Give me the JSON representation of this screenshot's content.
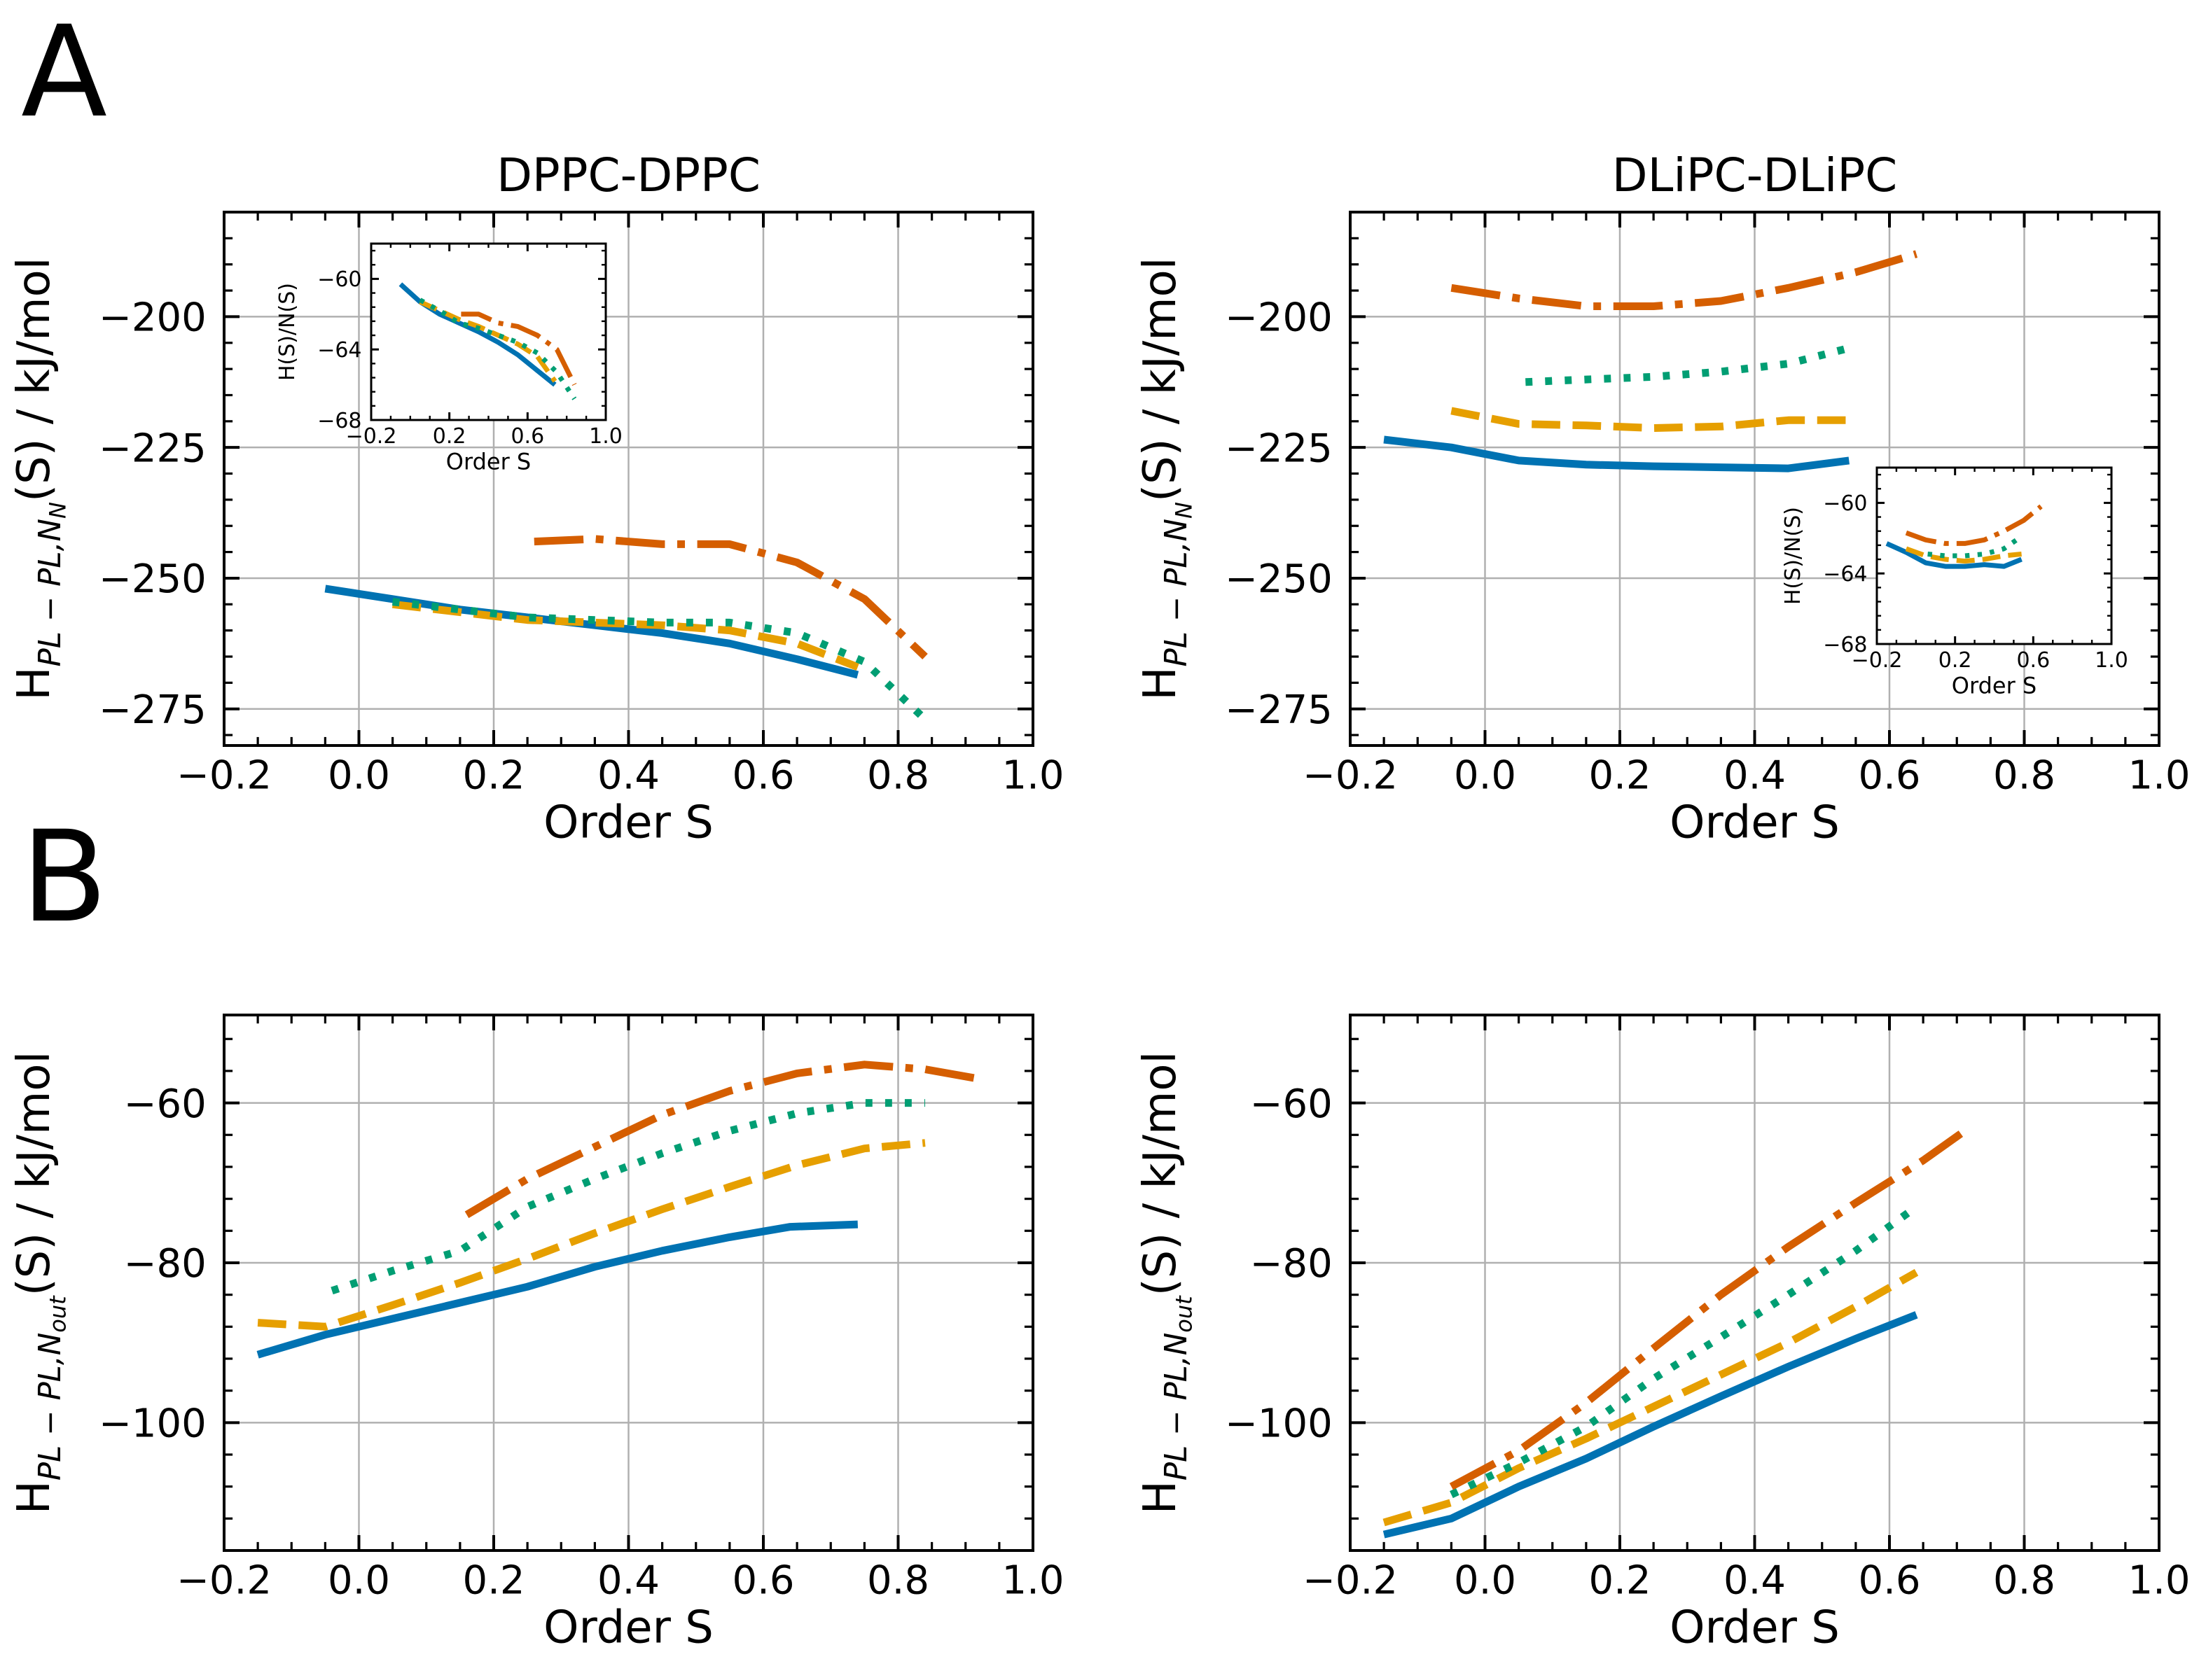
{
  "figure": {
    "panel_labels": [
      "A",
      "B"
    ]
  },
  "style": {
    "series_colors": [
      "#0072b2",
      "#e69f00",
      "#009e73",
      "#d55e00"
    ],
    "series_dash": [
      "solid",
      "dashed",
      "dotted",
      "dashdot"
    ],
    "grid_color": "#b0b0b0"
  },
  "chart_data": [
    {
      "id": "A-left",
      "type": "line",
      "title": "DPPC-DPPC",
      "xlabel": "Order S",
      "ylabel": "H_{PL-PL,N_N}(S) / kJ/mol",
      "xlim": [
        -0.2,
        1.0
      ],
      "ylim": [
        -282,
        -180
      ],
      "xticks": [
        -0.2,
        0.0,
        0.2,
        0.4,
        0.6,
        0.8,
        1.0
      ],
      "xtick_labels": [
        "−0.2",
        "0.0",
        "0.2",
        "0.4",
        "0.6",
        "0.8",
        "1.0"
      ],
      "yticks": [
        -275,
        -250,
        -225,
        -200
      ],
      "ytick_labels": [
        "−275",
        "−250",
        "−225",
        "−200"
      ],
      "grid": true,
      "series": [
        {
          "x": [
            -0.05,
            0.05,
            0.15,
            0.25,
            0.35,
            0.45,
            0.55,
            0.65,
            0.74
          ],
          "y": [
            -252,
            -254,
            -256,
            -257.5,
            -259,
            -260.5,
            -262.5,
            -265.5,
            -268.5
          ]
        },
        {
          "x": [
            0.05,
            0.15,
            0.25,
            0.35,
            0.45,
            0.55,
            0.65,
            0.74
          ],
          "y": [
            -255,
            -256.5,
            -258,
            -258.5,
            -259,
            -260,
            -262.5,
            -267
          ]
        },
        {
          "x": [
            0.05,
            0.15,
            0.25,
            0.35,
            0.45,
            0.55,
            0.65,
            0.75,
            0.84
          ],
          "y": [
            -254.5,
            -256,
            -257.5,
            -258,
            -258.5,
            -258.5,
            -260.5,
            -266,
            -277
          ]
        },
        {
          "x": [
            0.26,
            0.35,
            0.45,
            0.55,
            0.65,
            0.75,
            0.84
          ],
          "y": [
            -243,
            -242.5,
            -243.5,
            -243.5,
            -247,
            -254,
            -265
          ]
        }
      ],
      "inset": {
        "xlabel": "Order S",
        "ylabel": "H(S)/N(S)",
        "xlim": [
          -0.2,
          1.0
        ],
        "ylim": [
          -68,
          -58
        ],
        "xticks": [
          -0.2,
          0.2,
          0.6,
          1.0
        ],
        "xtick_labels": [
          "−0.2",
          "0.2",
          "0.6",
          "1.0"
        ],
        "yticks": [
          -68,
          -64,
          -60
        ],
        "ytick_labels": [
          "−68",
          "−64",
          "−60"
        ],
        "series": [
          {
            "x": [
              -0.05,
              0.05,
              0.15,
              0.25,
              0.35,
              0.45,
              0.55,
              0.65,
              0.74
            ],
            "y": [
              -60.3,
              -61.3,
              -62.0,
              -62.5,
              -63.0,
              -63.6,
              -64.3,
              -65.2,
              -66.0
            ]
          },
          {
            "x": [
              0.05,
              0.15,
              0.25,
              0.35,
              0.45,
              0.55,
              0.65,
              0.74
            ],
            "y": [
              -61.3,
              -61.8,
              -62.3,
              -62.7,
              -63.2,
              -63.7,
              -64.4,
              -65.8
            ]
          },
          {
            "x": [
              0.05,
              0.15,
              0.25,
              0.35,
              0.45,
              0.55,
              0.65,
              0.75,
              0.84
            ],
            "y": [
              -61.2,
              -61.8,
              -62.5,
              -62.8,
              -63.2,
              -63.6,
              -64.2,
              -65.3,
              -66.8
            ]
          },
          {
            "x": [
              0.26,
              0.35,
              0.45,
              0.55,
              0.65,
              0.75,
              0.84
            ],
            "y": [
              -62.0,
              -62.0,
              -62.5,
              -62.7,
              -63.2,
              -64.0,
              -66.0
            ]
          }
        ]
      }
    },
    {
      "id": "A-right",
      "type": "line",
      "title": "DLiPC-DLiPC",
      "xlabel": "Order S",
      "ylabel": "H_{PL-PL,N_N}(S) / kJ/mol",
      "xlim": [
        -0.2,
        1.0
      ],
      "ylim": [
        -282,
        -180
      ],
      "xticks": [
        -0.2,
        0.0,
        0.2,
        0.4,
        0.6,
        0.8,
        1.0
      ],
      "xtick_labels": [
        "−0.2",
        "0.0",
        "0.2",
        "0.4",
        "0.6",
        "0.8",
        "1.0"
      ],
      "yticks": [
        -275,
        -250,
        -225,
        -200
      ],
      "ytick_labels": [
        "−275",
        "−250",
        "−225",
        "−200"
      ],
      "grid": true,
      "series": [
        {
          "x": [
            -0.15,
            -0.05,
            0.05,
            0.15,
            0.25,
            0.35,
            0.45,
            0.54
          ],
          "y": [
            -223.5,
            -225,
            -227.5,
            -228.3,
            -228.6,
            -228.8,
            -229,
            -227.5
          ]
        },
        {
          "x": [
            -0.05,
            0.05,
            0.15,
            0.25,
            0.35,
            0.45,
            0.54
          ],
          "y": [
            -218,
            -220.5,
            -220.8,
            -221.3,
            -221,
            -219.8,
            -219.8
          ]
        },
        {
          "x": [
            0.06,
            0.15,
            0.25,
            0.35,
            0.45,
            0.54
          ],
          "y": [
            -212.5,
            -212,
            -211.5,
            -210.5,
            -209,
            -206
          ]
        },
        {
          "x": [
            -0.05,
            0.05,
            0.15,
            0.25,
            0.35,
            0.45,
            0.55,
            0.64
          ],
          "y": [
            -194.5,
            -196.5,
            -198,
            -198,
            -197,
            -194.5,
            -191.5,
            -188
          ]
        }
      ],
      "inset": {
        "xlabel": "Order S",
        "ylabel": "H(S)/N(S)",
        "xlim": [
          -0.2,
          1.0
        ],
        "ylim": [
          -68,
          -58
        ],
        "xticks": [
          -0.2,
          0.2,
          0.6,
          1.0
        ],
        "xtick_labels": [
          "−0.2",
          "0.2",
          "0.6",
          "1.0"
        ],
        "yticks": [
          -68,
          -64,
          -60
        ],
        "ytick_labels": [
          "−68",
          "−64",
          "−60"
        ],
        "series": [
          {
            "x": [
              -0.15,
              -0.05,
              0.05,
              0.15,
              0.25,
              0.35,
              0.45,
              0.54
            ],
            "y": [
              -62.3,
              -62.8,
              -63.4,
              -63.6,
              -63.6,
              -63.5,
              -63.6,
              -63.2
            ]
          },
          {
            "x": [
              -0.05,
              0.05,
              0.15,
              0.25,
              0.35,
              0.45,
              0.54
            ],
            "y": [
              -62.6,
              -63.0,
              -63.2,
              -63.3,
              -63.2,
              -63.0,
              -62.9
            ]
          },
          {
            "x": [
              0.06,
              0.15,
              0.25,
              0.35,
              0.45,
              0.54
            ],
            "y": [
              -62.9,
              -63.0,
              -63.0,
              -62.9,
              -62.6,
              -61.9
            ]
          },
          {
            "x": [
              -0.05,
              0.05,
              0.15,
              0.25,
              0.35,
              0.45,
              0.55,
              0.64
            ],
            "y": [
              -61.7,
              -62.1,
              -62.3,
              -62.3,
              -62.1,
              -61.6,
              -61.0,
              -60.2
            ]
          }
        ]
      }
    },
    {
      "id": "B-left",
      "type": "line",
      "title": "",
      "xlabel": "Order S",
      "ylabel": "H_{PL-PL,N_out}(S) / kJ/mol",
      "xlim": [
        -0.2,
        1.0
      ],
      "ylim": [
        -116,
        -49
      ],
      "xticks": [
        -0.2,
        0.0,
        0.2,
        0.4,
        0.6,
        0.8,
        1.0
      ],
      "xtick_labels": [
        "−0.2",
        "0.0",
        "0.2",
        "0.4",
        "0.6",
        "0.8",
        "1.0"
      ],
      "yticks": [
        -100,
        -80,
        -60
      ],
      "ytick_labels": [
        "−100",
        "−80",
        "−60"
      ],
      "grid": true,
      "series": [
        {
          "x": [
            -0.15,
            -0.05,
            0.05,
            0.15,
            0.25,
            0.35,
            0.45,
            0.55,
            0.64,
            0.74
          ],
          "y": [
            -91.5,
            -89,
            -87,
            -85,
            -83,
            -80.5,
            -78.5,
            -76.8,
            -75.5,
            -75.2
          ]
        },
        {
          "x": [
            -0.15,
            -0.05,
            0.05,
            0.15,
            0.25,
            0.35,
            0.45,
            0.55,
            0.65,
            0.75,
            0.84
          ],
          "y": [
            -87.5,
            -88,
            -85.3,
            -82.5,
            -79.5,
            -76.3,
            -73.3,
            -70.5,
            -67.8,
            -65.7,
            -65
          ]
        },
        {
          "x": [
            -0.04,
            0.05,
            0.15,
            0.25,
            0.35,
            0.45,
            0.55,
            0.65,
            0.75,
            0.84
          ],
          "y": [
            -83.5,
            -81,
            -78.5,
            -73,
            -69.5,
            -66.3,
            -63.5,
            -61.3,
            -60,
            -60
          ]
        },
        {
          "x": [
            0.16,
            0.25,
            0.35,
            0.45,
            0.55,
            0.65,
            0.75,
            0.84,
            0.92
          ],
          "y": [
            -74,
            -69.5,
            -65.5,
            -61.5,
            -58.5,
            -56.3,
            -55.2,
            -55.8,
            -57
          ]
        }
      ]
    },
    {
      "id": "B-right",
      "type": "line",
      "title": "",
      "xlabel": "Order S",
      "ylabel": "H_{PL-PL,N_out}(S) / kJ/mol",
      "xlim": [
        -0.2,
        1.0
      ],
      "ylim": [
        -116,
        -49
      ],
      "xticks": [
        -0.2,
        0.0,
        0.2,
        0.4,
        0.6,
        0.8,
        1.0
      ],
      "xtick_labels": [
        "−0.2",
        "0.0",
        "0.2",
        "0.4",
        "0.6",
        "0.8",
        "1.0"
      ],
      "yticks": [
        -100,
        -80,
        -60
      ],
      "ytick_labels": [
        "−100",
        "−80",
        "−60"
      ],
      "grid": true,
      "series": [
        {
          "x": [
            -0.15,
            -0.05,
            0.05,
            0.15,
            0.25,
            0.35,
            0.45,
            0.55,
            0.64
          ],
          "y": [
            -114,
            -112,
            -108,
            -104.5,
            -100.5,
            -96.7,
            -93,
            -89.5,
            -86.5
          ]
        },
        {
          "x": [
            -0.15,
            -0.05,
            0.05,
            0.15,
            0.25,
            0.35,
            0.45,
            0.55,
            0.64
          ],
          "y": [
            -112.5,
            -110,
            -105.7,
            -102,
            -98,
            -94,
            -90,
            -85.5,
            -81.2
          ]
        },
        {
          "x": [
            -0.05,
            0.05,
            0.15,
            0.25,
            0.35,
            0.45,
            0.55,
            0.64
          ],
          "y": [
            -109,
            -105,
            -100.5,
            -94.5,
            -89.3,
            -84,
            -78.5,
            -73
          ]
        },
        {
          "x": [
            -0.05,
            0.05,
            0.15,
            0.25,
            0.35,
            0.45,
            0.55,
            0.65,
            0.72
          ],
          "y": [
            -108,
            -103.5,
            -97.5,
            -90.7,
            -84,
            -78,
            -72.5,
            -67.2,
            -63
          ]
        }
      ]
    }
  ]
}
